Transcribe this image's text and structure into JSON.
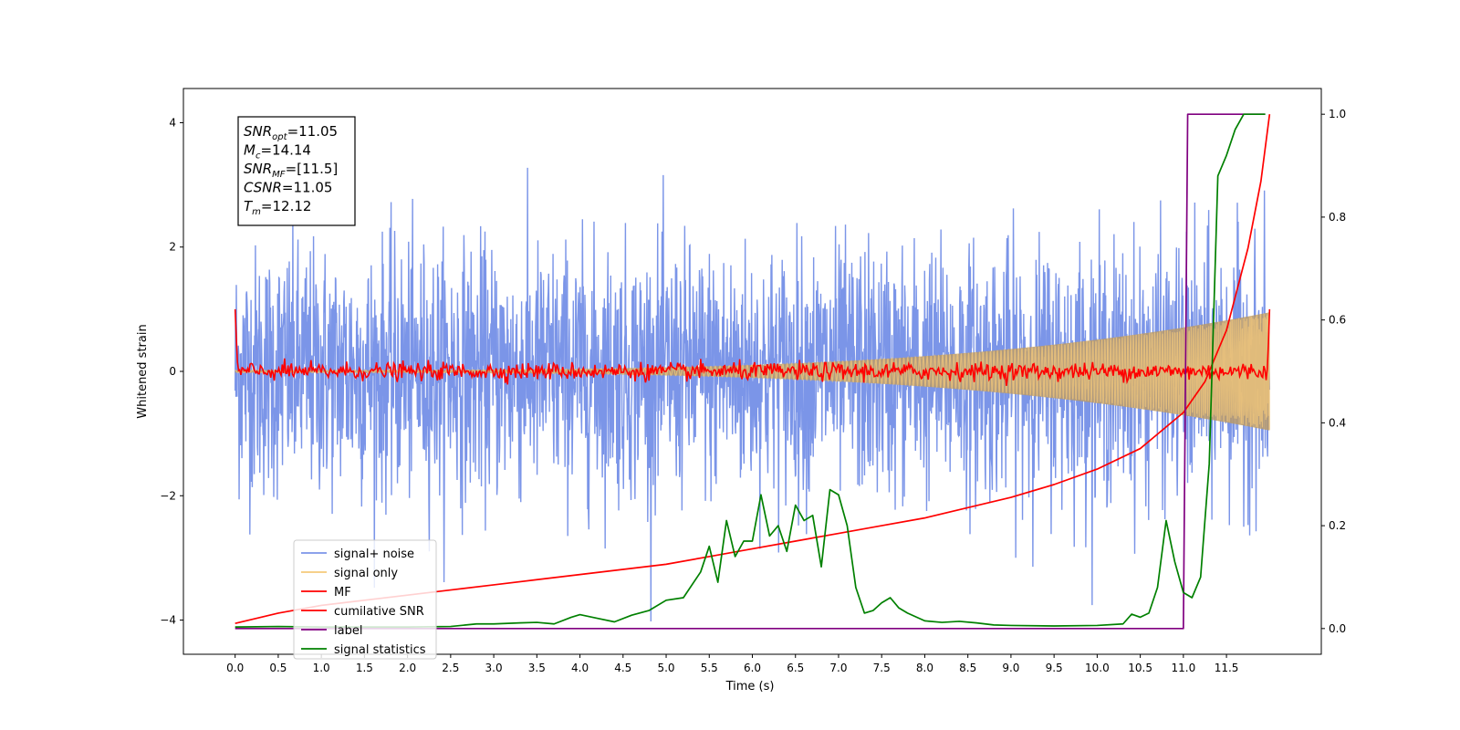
{
  "chart_data": {
    "type": "line",
    "title": "",
    "xlabel": "Time (s)",
    "ylabel": "Whitened strain",
    "y2label": "",
    "xlim": [
      -0.6,
      12.6
    ],
    "ylim": [
      -4.55,
      4.55
    ],
    "y2lim": [
      -0.05,
      1.05
    ],
    "x_ticks": [
      "0.0",
      "0.5",
      "1.0",
      "1.5",
      "2.0",
      "2.5",
      "3.0",
      "3.5",
      "4.0",
      "4.5",
      "5.0",
      "5.5",
      "6.0",
      "6.5",
      "7.0",
      "7.5",
      "8.0",
      "8.5",
      "9.0",
      "9.5",
      "10.0",
      "10.5",
      "11.0",
      "11.5"
    ],
    "y_ticks": [
      "4",
      "2",
      "0",
      "−2",
      "−4"
    ],
    "y2_ticks": [
      "1.0",
      "0.8",
      "0.6",
      "0.4",
      "0.2",
      "0.0"
    ],
    "grid": false,
    "legend_position": "lower-left",
    "annotation": {
      "lines": [
        {
          "sym": "SNR",
          "sub": "opt",
          "eq": "=",
          "value": "11.05"
        },
        {
          "sym": "M",
          "sub": "c",
          "eq": "=",
          "value": "14.14"
        },
        {
          "sym": "SNR",
          "sub": "MF",
          "eq": "=",
          "value": "[11.5]"
        },
        {
          "sym": "CSNR",
          "sub": "",
          "eq": "=",
          "value": "11.05"
        },
        {
          "sym": "T",
          "sub": "m",
          "eq": "=",
          "value": "12.12"
        }
      ]
    },
    "series": [
      {
        "name": "signal+ noise",
        "color": "#7b95e8",
        "axis": "left",
        "style": "noise",
        "t_start": 0.0,
        "t_end": 12.0,
        "std": 1.0,
        "max_abs": 4.1
      },
      {
        "name": "signal only",
        "color": "#f5c97a",
        "axis": "left",
        "style": "chirp",
        "t_start": 0.0,
        "t_end": 12.0,
        "amplitude_start": 0.02,
        "amplitude_end": 0.95
      },
      {
        "name": "MF",
        "color": "#ff0000",
        "axis": "left",
        "style": "mf",
        "t_start": 0.0,
        "t_end": 12.0,
        "start_value": 1.0,
        "end_value": 1.0,
        "baseline": 0.0
      },
      {
        "name": "cumilative SNR",
        "color": "#ff0000",
        "axis": "right",
        "x": [
          0.0,
          0.5,
          1.0,
          1.5,
          2.0,
          2.5,
          3.0,
          3.5,
          4.0,
          4.5,
          5.0,
          5.5,
          6.0,
          6.5,
          7.0,
          7.5,
          8.0,
          8.5,
          9.0,
          9.5,
          10.0,
          10.5,
          11.0,
          11.25,
          11.5,
          11.75,
          11.9,
          12.0
        ],
        "y": [
          0.01,
          0.03,
          0.045,
          0.055,
          0.065,
          0.075,
          0.085,
          0.095,
          0.105,
          0.115,
          0.125,
          0.14,
          0.155,
          0.17,
          0.185,
          0.2,
          0.215,
          0.235,
          0.255,
          0.28,
          0.31,
          0.35,
          0.42,
          0.48,
          0.58,
          0.74,
          0.87,
          1.0
        ]
      },
      {
        "name": "label",
        "color": "#800080",
        "axis": "right",
        "x": [
          0.0,
          11.0,
          11.05,
          11.95
        ],
        "y": [
          0.0,
          0.0,
          1.0,
          1.0
        ]
      },
      {
        "name": "signal statistics",
        "color": "#008000",
        "axis": "right",
        "x": [
          0.0,
          0.5,
          1.0,
          1.5,
          2.0,
          2.5,
          2.8,
          3.0,
          3.3,
          3.5,
          3.7,
          3.9,
          4.0,
          4.2,
          4.4,
          4.6,
          4.8,
          5.0,
          5.2,
          5.4,
          5.5,
          5.6,
          5.7,
          5.8,
          5.9,
          6.0,
          6.1,
          6.2,
          6.3,
          6.4,
          6.5,
          6.6,
          6.7,
          6.8,
          6.9,
          7.0,
          7.1,
          7.2,
          7.3,
          7.4,
          7.5,
          7.6,
          7.7,
          7.8,
          8.0,
          8.2,
          8.4,
          8.6,
          8.8,
          9.0,
          9.5,
          10.0,
          10.3,
          10.4,
          10.5,
          10.6,
          10.7,
          10.8,
          10.9,
          11.0,
          11.1,
          11.2,
          11.3,
          11.4,
          11.5,
          11.6,
          11.7,
          11.8,
          11.95
        ],
        "y": [
          0.003,
          0.004,
          0.003,
          0.003,
          0.003,
          0.004,
          0.009,
          0.009,
          0.011,
          0.012,
          0.009,
          0.022,
          0.027,
          0.02,
          0.013,
          0.026,
          0.035,
          0.055,
          0.06,
          0.11,
          0.16,
          0.09,
          0.21,
          0.14,
          0.17,
          0.17,
          0.26,
          0.18,
          0.2,
          0.15,
          0.24,
          0.21,
          0.22,
          0.12,
          0.27,
          0.26,
          0.2,
          0.08,
          0.03,
          0.035,
          0.05,
          0.06,
          0.04,
          0.03,
          0.015,
          0.012,
          0.014,
          0.011,
          0.007,
          0.006,
          0.005,
          0.006,
          0.009,
          0.028,
          0.022,
          0.03,
          0.08,
          0.21,
          0.13,
          0.07,
          0.06,
          0.1,
          0.32,
          0.88,
          0.92,
          0.97,
          1.0,
          1.0,
          1.0
        ]
      }
    ]
  }
}
